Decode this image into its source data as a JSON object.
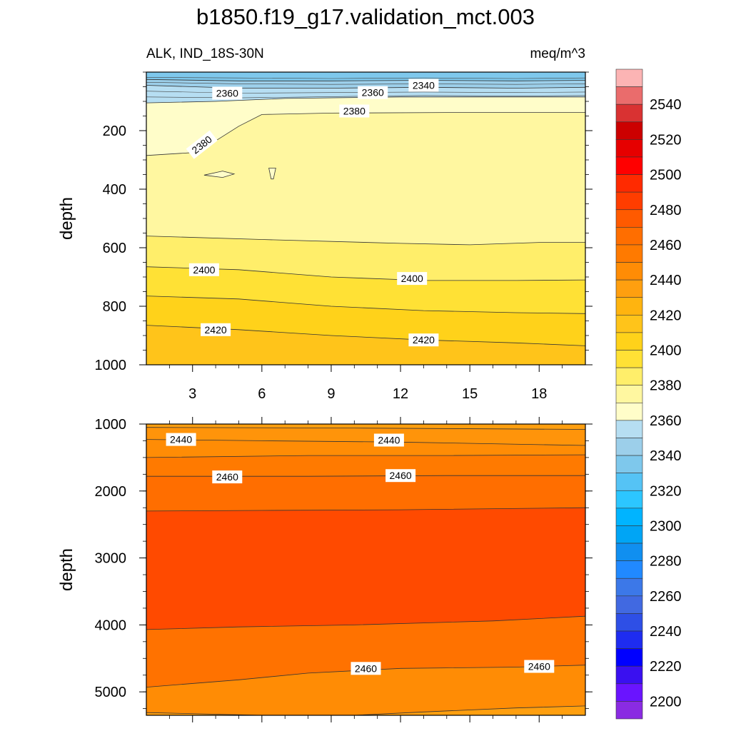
{
  "chart_data": [
    {
      "type": "contour",
      "title": "b1850.f19_g17.validation_mct.003",
      "left_label": "ALK, IND_18S-30N",
      "right_label": "meq/m^3",
      "ylabel": "depth",
      "xlim": [
        1,
        20
      ],
      "ylim": [
        0,
        1000
      ],
      "y_reversed": true,
      "x_ticks": [
        "3",
        "6",
        "9",
        "12",
        "15",
        "18"
      ],
      "y_ticks": [
        "200",
        "400",
        "600",
        "800",
        "1000"
      ],
      "bands": [
        {
          "top": [
            [
              1,
              0
            ],
            [
              20,
              0
            ]
          ],
          "fill": "#7ec8ec"
        },
        {
          "top": [
            [
              1,
              25
            ],
            [
              5,
              30
            ],
            [
              9,
              30
            ],
            [
              13,
              28
            ],
            [
              17,
              30
            ],
            [
              20,
              28
            ]
          ],
          "fill": "#9ccfea"
        },
        {
          "top": [
            [
              1,
              45
            ],
            [
              5,
              55
            ],
            [
              9,
              55
            ],
            [
              13,
              52
            ],
            [
              17,
              55
            ],
            [
              20,
              52
            ]
          ],
          "fill": "#b6def2"
        },
        {
          "top": [
            [
              1,
              105
            ],
            [
              4,
              100
            ],
            [
              7,
              90
            ],
            [
              12,
              85
            ],
            [
              17,
              85
            ],
            [
              20,
              85
            ]
          ],
          "fill": "#fffdc9"
        },
        {
          "top": [
            [
              1,
              285
            ],
            [
              3,
              275
            ],
            [
              4,
              235
            ],
            [
              5,
              185
            ],
            [
              6,
              145
            ],
            [
              9,
              140
            ],
            [
              14,
              138
            ],
            [
              20,
              138
            ]
          ],
          "fill": "#fff7a0"
        },
        {
          "top": [
            [
              1,
              560
            ],
            [
              6,
              572
            ],
            [
              12,
              585
            ],
            [
              15,
              590
            ],
            [
              18,
              582
            ],
            [
              20,
              582
            ]
          ],
          "fill": "#ffee6a"
        },
        {
          "top": [
            [
              1,
              665
            ],
            [
              5,
              675
            ],
            [
              9,
              700
            ],
            [
              13,
              712
            ],
            [
              17,
              712
            ],
            [
              20,
              710
            ]
          ],
          "fill": "#ffe135"
        },
        {
          "top": [
            [
              1,
              765
            ],
            [
              5,
              775
            ],
            [
              9,
              800
            ],
            [
              13,
              815
            ],
            [
              17,
              822
            ],
            [
              20,
              825
            ]
          ],
          "fill": "#ffd21a"
        },
        {
          "top": [
            [
              1,
              865
            ],
            [
              5,
              880
            ],
            [
              9,
              900
            ],
            [
              13,
              915
            ],
            [
              17,
              925
            ],
            [
              20,
              935
            ]
          ],
          "fill": "#ffc41a"
        }
      ],
      "extra_lines": [
        [
          [
            1,
            18
          ],
          [
            5,
            20
          ],
          [
            9,
            22
          ],
          [
            13,
            20
          ],
          [
            17,
            22
          ],
          [
            20,
            20
          ]
        ],
        [
          [
            1,
            35
          ],
          [
            5,
            40
          ],
          [
            9,
            42
          ],
          [
            13,
            40
          ],
          [
            17,
            42
          ],
          [
            20,
            40
          ]
        ],
        [
          [
            1,
            65
          ],
          [
            5,
            72
          ],
          [
            9,
            70
          ],
          [
            13,
            68
          ],
          [
            17,
            70
          ],
          [
            20,
            68
          ]
        ],
        [
          [
            1,
            85
          ],
          [
            5,
            88
          ],
          [
            9,
            84
          ],
          [
            13,
            80
          ],
          [
            17,
            82
          ],
          [
            20,
            80
          ]
        ]
      ],
      "islands": [
        [
          [
            3.5,
            352
          ],
          [
            4.3,
            338
          ],
          [
            4.8,
            348
          ],
          [
            4.3,
            360
          ],
          [
            3.5,
            352
          ]
        ],
        [
          [
            6.3,
            328
          ],
          [
            6.6,
            328
          ],
          [
            6.5,
            365
          ],
          [
            6.4,
            365
          ],
          [
            6.3,
            328
          ]
        ]
      ],
      "labels": [
        {
          "text": "2360",
          "x": 4.5,
          "y": 72
        },
        {
          "text": "2360",
          "x": 10.8,
          "y": 70
        },
        {
          "text": "2340",
          "x": 13.0,
          "y": 45
        },
        {
          "text": "2380",
          "x": 10.0,
          "y": 133
        },
        {
          "text": "2380",
          "x": 3.4,
          "y": 248,
          "angle": -38
        },
        {
          "text": "2400",
          "x": 3.5,
          "y": 675
        },
        {
          "text": "2400",
          "x": 12.5,
          "y": 705
        },
        {
          "text": "2420",
          "x": 4.0,
          "y": 880
        },
        {
          "text": "2420",
          "x": 13.0,
          "y": 915
        }
      ]
    },
    {
      "type": "contour",
      "ylabel": "depth",
      "xlim": [
        1,
        20
      ],
      "ylim": [
        1000,
        5350
      ],
      "y_reversed": true,
      "x_ticks": [
        "3",
        "6",
        "9",
        "12",
        "15",
        "18"
      ],
      "y_ticks": [
        "1000",
        "2000",
        "3000",
        "4000",
        "5000"
      ],
      "bands": [
        {
          "top": [
            [
              1,
              1000
            ],
            [
              20,
              1000
            ]
          ],
          "fill": "#ff9f0f"
        },
        {
          "top": [
            [
              1,
              1050
            ],
            [
              10,
              1060
            ],
            [
              20,
              1080
            ]
          ],
          "fill": "#ff940a"
        },
        {
          "top": [
            [
              1,
              1230
            ],
            [
              6,
              1250
            ],
            [
              12,
              1270
            ],
            [
              20,
              1320
            ]
          ],
          "fill": "#ff8c05"
        },
        {
          "top": [
            [
              1,
              1500
            ],
            [
              8,
              1470
            ],
            [
              14,
              1470
            ],
            [
              20,
              1460
            ]
          ],
          "fill": "#ff7a00"
        },
        {
          "top": [
            [
              1,
              1780
            ],
            [
              8,
              1780
            ],
            [
              14,
              1770
            ],
            [
              20,
              1770
            ]
          ],
          "fill": "#ff6e00"
        },
        {
          "top": [
            [
              1,
              2300
            ],
            [
              6,
              2290
            ],
            [
              12,
              2280
            ],
            [
              20,
              2250
            ]
          ],
          "fill": "#ff4a00"
        },
        {
          "top": [
            [
              1,
              4070
            ],
            [
              5,
              4030
            ],
            [
              10,
              4000
            ],
            [
              16,
              3940
            ],
            [
              20,
              3870
            ]
          ],
          "fill": "#ff7200"
        },
        {
          "top": [
            [
              1,
              4930
            ],
            [
              5,
              4820
            ],
            [
              8,
              4720
            ],
            [
              12,
              4650
            ],
            [
              17,
              4630
            ],
            [
              20,
              4600
            ]
          ],
          "fill": "#ff8c05"
        },
        {
          "top": [
            [
              1,
              5310
            ],
            [
              6,
              5350
            ],
            [
              10,
              5350
            ],
            [
              13,
              5300
            ],
            [
              17,
              5240
            ],
            [
              20,
              5210
            ]
          ],
          "fill": "#ff9f0f"
        }
      ],
      "extra_lines": [],
      "islands": [],
      "labels": [
        {
          "text": "2440",
          "x": 2.5,
          "y": 1230
        },
        {
          "text": "2440",
          "x": 11.5,
          "y": 1240
        },
        {
          "text": "2460",
          "x": 4.5,
          "y": 1790
        },
        {
          "text": "2460",
          "x": 12.0,
          "y": 1770
        },
        {
          "text": "2460",
          "x": 10.5,
          "y": 4650
        },
        {
          "text": "2460",
          "x": 18.0,
          "y": 4620
        }
      ]
    }
  ],
  "colorbar": {
    "tick_labels": [
      "2200",
      "2220",
      "2240",
      "2260",
      "2280",
      "2300",
      "2320",
      "2340",
      "2360",
      "2380",
      "2400",
      "2420",
      "2440",
      "2460",
      "2480",
      "2500",
      "2520",
      "2540"
    ],
    "colors": [
      "#8a2be2",
      "#6a14ff",
      "#3a10f0",
      "#0000ff",
      "#1e2cf0",
      "#2e4fe6",
      "#4169e1",
      "#3c78e8",
      "#2189ff",
      "#108ff0",
      "#00a5f5",
      "#00b4ff",
      "#2cc6ff",
      "#55c3f5",
      "#7ec8ec",
      "#9ccfea",
      "#b6def2",
      "#fffdc9",
      "#fff7a0",
      "#ffee6a",
      "#ffe135",
      "#ffd21a",
      "#ffc41a",
      "#ffb40f",
      "#ff9f0f",
      "#ff8c05",
      "#ff7a00",
      "#ff6e00",
      "#ff5a00",
      "#ff3d00",
      "#ff2a00",
      "#ff0000",
      "#e60000",
      "#cc0000",
      "#d93232",
      "#ea6c6c",
      "#fcb4b4"
    ]
  }
}
